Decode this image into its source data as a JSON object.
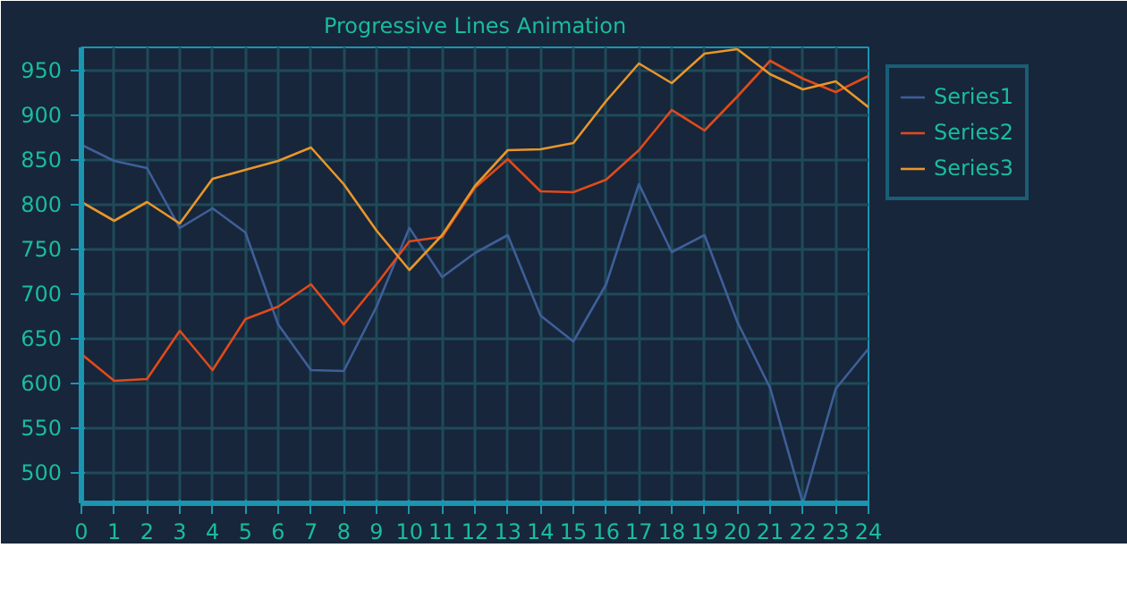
{
  "chart_data": {
    "type": "line",
    "title": "Progressive Lines Animation",
    "x": [
      0,
      1,
      2,
      3,
      4,
      5,
      6,
      7,
      8,
      9,
      10,
      11,
      12,
      13,
      14,
      15,
      16,
      17,
      18,
      19,
      20,
      21,
      22,
      23,
      24
    ],
    "series": [
      {
        "name": "Series1",
        "color": "#3e5f99",
        "values": [
          866,
          848,
          840,
          773,
          795,
          768,
          665,
          614,
          613,
          685,
          773,
          718,
          745,
          765,
          675,
          646,
          710,
          822,
          746,
          765,
          668,
          594,
          465,
          593,
          638
        ]
      },
      {
        "name": "Series2",
        "color": "#e04a1c",
        "values": [
          632,
          602,
          604,
          658,
          614,
          671,
          685,
          710,
          665,
          710,
          758,
          763,
          818,
          850,
          814,
          813,
          827,
          860,
          905,
          882,
          920,
          960,
          940,
          925,
          943
        ]
      },
      {
        "name": "Series3",
        "color": "#e8962a",
        "values": [
          802,
          781,
          802,
          778,
          828,
          838,
          848,
          863,
          822,
          770,
          726,
          765,
          820,
          860,
          861,
          868,
          915,
          957,
          935,
          968,
          973,
          945,
          928,
          937,
          908
        ]
      }
    ],
    "xlim": [
      0,
      24
    ],
    "xticks": [
      0,
      1,
      2,
      3,
      4,
      5,
      6,
      7,
      8,
      9,
      10,
      11,
      12,
      13,
      14,
      15,
      16,
      17,
      18,
      19,
      20,
      21,
      22,
      23,
      24
    ],
    "ylim": [
      465,
      975
    ],
    "yticks": [
      500,
      550,
      600,
      650,
      700,
      750,
      800,
      850,
      900,
      950
    ],
    "grid": true,
    "legend": "right",
    "marker": "none",
    "line_style": "solid"
  }
}
